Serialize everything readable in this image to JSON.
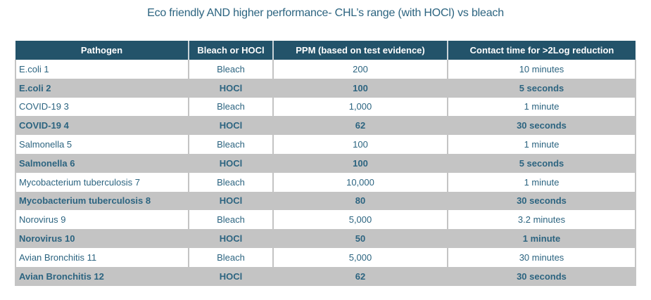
{
  "title": "Eco friendly AND higher performance- CHL’s range (with HOCl) vs bleach",
  "table": {
    "headers": [
      "Pathogen",
      "Bleach or HOCl",
      "PPM (based on test evidence)",
      "Contact time for >2Log reduction"
    ],
    "rows": [
      {
        "pathogen": "E.coli 1",
        "agent": "Bleach",
        "ppm": "200",
        "contact_time": "10 minutes",
        "highlight": false
      },
      {
        "pathogen": "E.coli 2",
        "agent": "HOCl",
        "ppm": "100",
        "contact_time": "5 seconds",
        "highlight": true
      },
      {
        "pathogen": "COVID-19 3",
        "agent": "Bleach",
        "ppm": "1,000",
        "contact_time": "1 minute",
        "highlight": false
      },
      {
        "pathogen": "COVID-19 4",
        "agent": "HOCl",
        "ppm": "62",
        "contact_time": "30 seconds",
        "highlight": true
      },
      {
        "pathogen": "Salmonella 5",
        "agent": "Bleach",
        "ppm": "100",
        "contact_time": "1 minute",
        "highlight": false
      },
      {
        "pathogen": "Salmonella 6",
        "agent": "HOCl",
        "ppm": "100",
        "contact_time": "5 seconds",
        "highlight": true
      },
      {
        "pathogen": "Mycobacterium tuberculosis 7",
        "agent": "Bleach",
        "ppm": "10,000",
        "contact_time": "1 minute",
        "highlight": false
      },
      {
        "pathogen": "Mycobacterium tuberculosis 8",
        "agent": "HOCl",
        "ppm": "80",
        "contact_time": "30 seconds",
        "highlight": true
      },
      {
        "pathogen": "Norovirus 9",
        "agent": "Bleach",
        "ppm": "5,000",
        "contact_time": "3.2 minutes",
        "highlight": false
      },
      {
        "pathogen": "Norovirus 10",
        "agent": "HOCl",
        "ppm": "50",
        "contact_time": "1 minute",
        "highlight": true
      },
      {
        "pathogen": "Avian Bronchitis 11",
        "agent": "Bleach",
        "ppm": "5,000",
        "contact_time": "30 minutes",
        "highlight": false
      },
      {
        "pathogen": "Avian Bronchitis 12",
        "agent": "HOCl",
        "ppm": "62",
        "contact_time": "30 seconds",
        "highlight": true
      }
    ]
  },
  "chart_data": {
    "type": "table",
    "title": "Eco friendly AND higher performance- CHL’s range (with HOCl) vs bleach",
    "columns": [
      "Pathogen",
      "Bleach or HOCl",
      "PPM (based on test evidence)",
      "Contact time for >2Log reduction"
    ],
    "rows": [
      [
        "E.coli 1",
        "Bleach",
        "200",
        "10 minutes"
      ],
      [
        "E.coli 2",
        "HOCl",
        "100",
        "5 seconds"
      ],
      [
        "COVID-19 3",
        "Bleach",
        "1,000",
        "1 minute"
      ],
      [
        "COVID-19 4",
        "HOCl",
        "62",
        "30 seconds"
      ],
      [
        "Salmonella 5",
        "Bleach",
        "100",
        "1 minute"
      ],
      [
        "Salmonella 6",
        "HOCl",
        "100",
        "5 seconds"
      ],
      [
        "Mycobacterium tuberculosis 7",
        "Bleach",
        "10,000",
        "1 minute"
      ],
      [
        "Mycobacterium tuberculosis 8",
        "HOCl",
        "80",
        "30 seconds"
      ],
      [
        "Norovirus 9",
        "Bleach",
        "5,000",
        "3.2 minutes"
      ],
      [
        "Norovirus 10",
        "HOCl",
        "50",
        "1 minute"
      ],
      [
        "Avian Bronchitis 11",
        "Bleach",
        "5,000",
        "30 minutes"
      ],
      [
        "Avian Bronchitis 12",
        "HOCl",
        "62",
        "30 seconds"
      ]
    ]
  },
  "colors": {
    "header_bg": "#23536a",
    "header_text": "#ffffff",
    "body_text": "#2c6480",
    "highlight_row_bg": "#c4c4c4",
    "row_bg": "#ffffff",
    "grid_border": "#c4c4c4"
  }
}
